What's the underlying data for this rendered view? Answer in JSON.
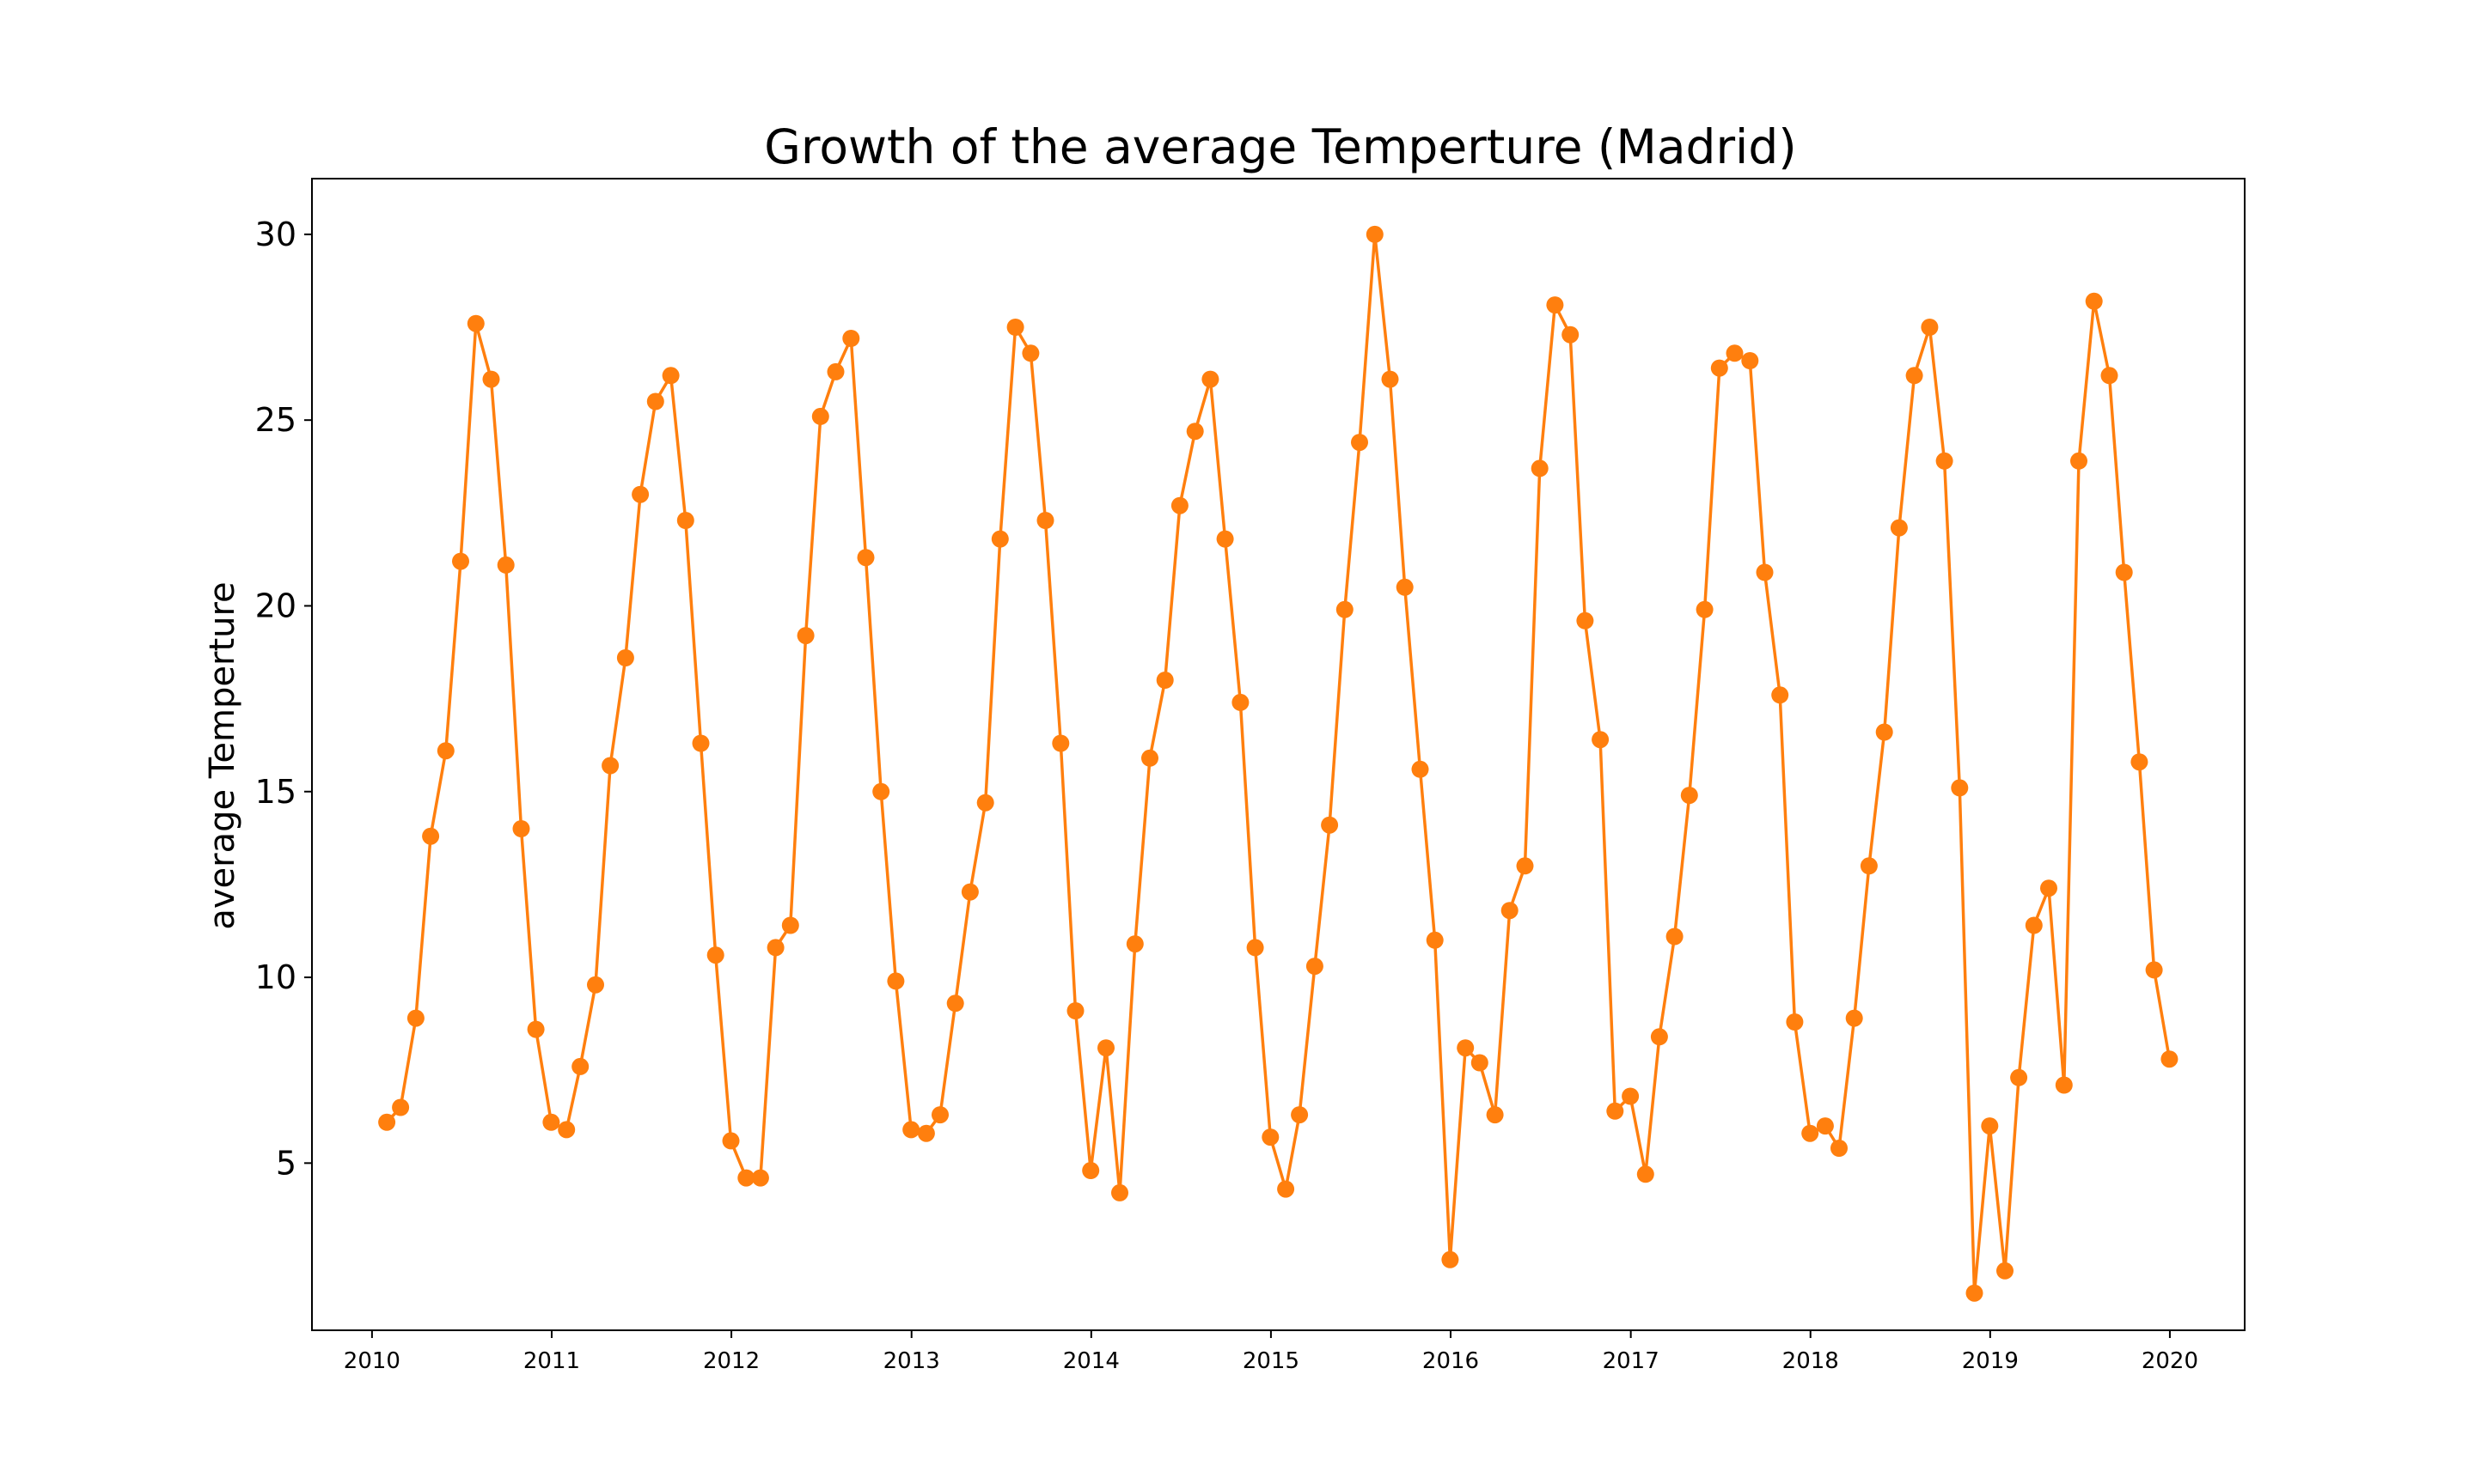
{
  "chart_data": {
    "type": "line",
    "title": "Growth of the average Temperture (Madrid)",
    "xlabel": "",
    "ylabel": "average Temperture",
    "x_ticks": [
      "2010",
      "2011",
      "2012",
      "2013",
      "2014",
      "2015",
      "2016",
      "2017",
      "2018",
      "2019",
      "2020"
    ],
    "y_ticks": [
      "5",
      "10",
      "15",
      "20",
      "25",
      "30"
    ],
    "xlim": [
      "2009-09-01",
      "2020-06-01"
    ],
    "ylim": [
      0.5,
      31.5
    ],
    "grid": false,
    "line_color": "#ff7f0e",
    "marker": "circle",
    "series": [
      {
        "x": [
          "2010-01-31",
          "2010-02-28",
          "2010-03-31",
          "2010-04-30",
          "2010-05-31",
          "2010-06-30",
          "2010-07-31",
          "2010-08-31",
          "2010-09-30",
          "2010-10-31",
          "2010-11-30",
          "2010-12-31",
          "2011-01-31",
          "2011-02-28",
          "2011-03-31",
          "2011-04-30",
          "2011-05-31",
          "2011-06-30",
          "2011-07-31",
          "2011-08-31",
          "2011-09-30",
          "2011-10-31",
          "2011-11-30",
          "2011-12-31",
          "2012-01-31",
          "2012-02-29",
          "2012-03-31",
          "2012-04-30",
          "2012-05-31",
          "2012-06-30",
          "2012-07-31",
          "2012-08-31",
          "2012-09-30",
          "2012-10-31",
          "2012-11-30",
          "2012-12-31",
          "2013-01-31",
          "2013-02-28",
          "2013-03-31",
          "2013-04-30",
          "2013-05-31",
          "2013-06-30",
          "2013-07-31",
          "2013-08-31",
          "2013-09-30",
          "2013-10-31",
          "2013-11-30",
          "2013-12-31",
          "2014-01-31",
          "2014-02-28",
          "2014-03-31",
          "2014-04-30",
          "2014-05-31",
          "2014-06-30",
          "2014-07-31",
          "2014-08-31",
          "2014-09-30",
          "2014-10-31",
          "2014-11-30",
          "2014-12-31",
          "2015-01-31",
          "2015-02-28",
          "2015-03-31",
          "2015-04-30",
          "2015-05-31",
          "2015-06-30",
          "2015-07-31",
          "2015-08-31",
          "2015-09-30",
          "2015-10-31",
          "2015-11-30",
          "2015-12-31",
          "2016-01-31",
          "2016-02-29",
          "2016-03-31",
          "2016-04-30",
          "2016-05-31",
          "2016-06-30",
          "2016-07-31",
          "2016-08-31",
          "2016-09-30",
          "2016-10-31",
          "2016-11-30",
          "2016-12-31",
          "2017-01-31",
          "2017-02-28",
          "2017-03-31",
          "2017-04-30",
          "2017-05-31",
          "2017-06-30",
          "2017-07-31",
          "2017-08-31",
          "2017-09-30",
          "2017-10-31",
          "2017-11-30",
          "2017-12-31",
          "2018-01-31",
          "2018-02-28",
          "2018-03-31",
          "2018-04-30",
          "2018-05-31",
          "2018-06-30",
          "2018-07-31",
          "2018-08-31",
          "2018-09-30",
          "2018-10-31",
          "2018-11-30",
          "2018-12-31",
          "2019-01-31",
          "2019-02-28",
          "2019-03-31",
          "2019-04-30",
          "2019-05-31",
          "2019-06-30",
          "2019-07-31",
          "2019-08-31",
          "2019-09-30",
          "2019-10-31",
          "2019-11-30",
          "2019-12-31"
        ],
        "y": [
          6.1,
          6.5,
          8.9,
          13.8,
          16.1,
          21.2,
          27.6,
          26.1,
          21.1,
          14.0,
          8.6,
          6.1,
          5.9,
          7.6,
          9.8,
          15.7,
          18.6,
          23.0,
          25.5,
          26.2,
          22.3,
          16.3,
          10.6,
          5.6,
          4.6,
          4.6,
          10.8,
          11.4,
          19.2,
          25.1,
          26.3,
          27.2,
          21.3,
          15.0,
          9.9,
          5.9,
          5.8,
          6.3,
          9.3,
          12.3,
          14.7,
          21.8,
          27.5,
          26.8,
          22.3,
          16.3,
          9.1,
          4.8,
          8.1,
          4.2,
          10.9,
          15.9,
          18.0,
          22.7,
          24.7,
          26.1,
          21.8,
          17.4,
          10.8,
          5.7,
          4.3,
          6.3,
          10.3,
          14.1,
          19.9,
          24.4,
          30.0,
          26.1,
          20.5,
          15.6,
          11.0,
          2.4,
          8.1,
          7.7,
          6.3,
          11.8,
          13.0,
          23.7,
          28.1,
          27.3,
          19.6,
          16.4,
          6.4,
          6.8,
          4.7,
          8.4,
          11.1,
          14.9,
          19.9,
          26.4,
          26.8,
          26.6,
          20.9,
          17.6,
          8.8,
          5.8,
          6.0,
          5.4,
          8.9,
          13.0,
          16.6,
          22.1,
          26.2,
          27.5,
          23.9,
          15.1,
          1.5,
          6.0,
          2.1,
          7.3,
          11.4,
          12.4,
          7.1,
          23.9,
          28.2,
          26.2,
          20.9,
          15.8,
          10.2,
          7.8
        ]
      }
    ]
  }
}
